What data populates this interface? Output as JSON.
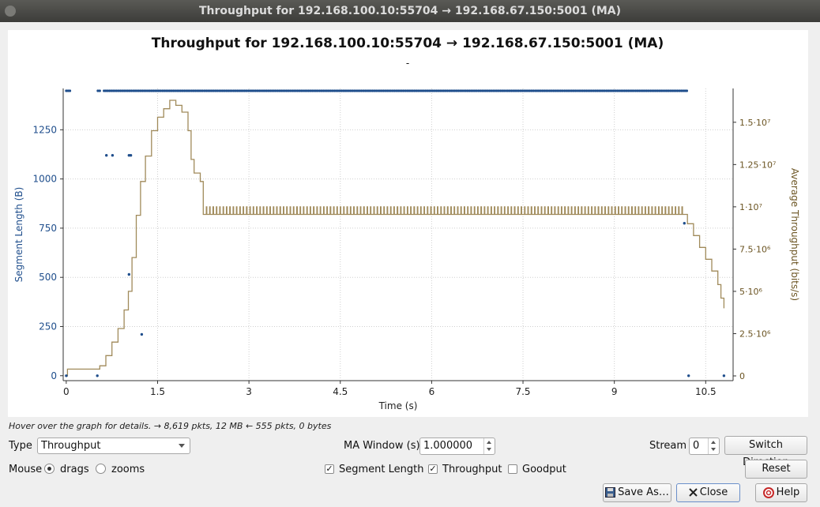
{
  "window": {
    "title": "Throughput for 192.168.100.10:55704 → 192.168.67.150:5001 (MA)"
  },
  "chart_data": {
    "type": "scatter+line",
    "title": "Throughput for 192.168.100.10:55704 → 192.168.67.150:5001 (MA)",
    "subtitle": "-",
    "xlabel": "Time (s)",
    "ylabel_left": "Segment Length (B)",
    "ylabel_right": "Average Throughput (bits/s)",
    "xlim": [
      -0.05,
      10.95
    ],
    "ylim_left": [
      -25,
      1460
    ],
    "ylim_right": [
      0,
      17000000
    ],
    "x_ticks": [
      "0",
      "1.5",
      "3",
      "4.5",
      "6",
      "7.5",
      "9",
      "10.5"
    ],
    "x_tick_values": [
      0,
      1.5,
      3,
      4.5,
      6,
      7.5,
      9,
      10.5
    ],
    "y_left_ticks": [
      "0",
      "250",
      "500",
      "750",
      "1000",
      "1250"
    ],
    "y_left_tick_values": [
      0,
      250,
      500,
      750,
      1000,
      1250
    ],
    "y_right_ticks": [
      "0",
      "2.5·10⁶",
      "5·10⁶",
      "7.5·10⁶",
      "1·10⁷",
      "1.25·10⁷",
      "1.5·10⁷"
    ],
    "y_right_tick_values": [
      0,
      2500000,
      5000000,
      7500000,
      10000000,
      12500000,
      15000000
    ],
    "grid": true,
    "series": [
      {
        "name": "Segment Length",
        "kind": "scatter",
        "color": "#1f4e8c",
        "dense_band": {
          "y": 1448,
          "ranges": [
            [
              0.0,
              0.08
            ],
            [
              0.52,
              0.57
            ],
            [
              0.62,
              10.2
            ]
          ]
        },
        "points": [
          [
            0.0,
            0
          ],
          [
            0.51,
            0
          ],
          [
            0.66,
            1120
          ],
          [
            0.76,
            1120
          ],
          [
            1.03,
            1120
          ],
          [
            1.06,
            1120
          ],
          [
            1.03,
            515
          ],
          [
            1.24,
            210
          ],
          [
            10.15,
            775
          ],
          [
            10.22,
            0
          ],
          [
            10.8,
            0
          ]
        ]
      },
      {
        "name": "Throughput",
        "kind": "line",
        "color": "#a08a5a",
        "points": [
          [
            0.0,
            0
          ],
          [
            0.02,
            400000
          ],
          [
            0.5,
            400000
          ],
          [
            0.55,
            600000
          ],
          [
            0.65,
            1200000
          ],
          [
            0.75,
            2000000
          ],
          [
            0.85,
            2800000
          ],
          [
            0.95,
            3900000
          ],
          [
            1.02,
            5000000
          ],
          [
            1.08,
            7000000
          ],
          [
            1.15,
            9500000
          ],
          [
            1.22,
            11500000
          ],
          [
            1.3,
            13000000
          ],
          [
            1.4,
            14500000
          ],
          [
            1.5,
            15300000
          ],
          [
            1.6,
            15800000
          ],
          [
            1.7,
            16300000
          ],
          [
            1.8,
            16000000
          ],
          [
            1.9,
            15600000
          ],
          [
            2.0,
            14500000
          ],
          [
            2.05,
            12800000
          ],
          [
            2.1,
            12000000
          ],
          [
            2.2,
            11500000
          ],
          [
            2.25,
            9550000
          ],
          [
            2.3,
            9550000
          ]
        ],
        "plateau": {
          "x_start": 2.3,
          "x_end": 10.12,
          "low": 9550000,
          "high": 10000000
        },
        "tail": [
          [
            10.12,
            9550000
          ],
          [
            10.2,
            9000000
          ],
          [
            10.3,
            8300000
          ],
          [
            10.4,
            7600000
          ],
          [
            10.5,
            6900000
          ],
          [
            10.6,
            6200000
          ],
          [
            10.7,
            5400000
          ],
          [
            10.75,
            4600000
          ],
          [
            10.8,
            4000000
          ]
        ]
      }
    ]
  },
  "status_text": "Hover over the graph for details. → 8,619 pkts, 12 MB ← 555 pkts, 0 bytes",
  "controls": {
    "type_label": "Type",
    "type_value": "Throughput",
    "ma_window_label": "MA Window (s)",
    "ma_window_value": "1.000000",
    "stream_label": "Stream",
    "stream_value": "0",
    "switch_direction": "Switch Direction",
    "mouse_label": "Mouse",
    "drags_label": "drags",
    "zooms_label": "zooms",
    "mouse_mode": "drags",
    "segment_length_label": "Segment Length",
    "segment_length_checked": true,
    "throughput_label": "Throughput",
    "throughput_checked": true,
    "goodput_label": "Goodput",
    "goodput_checked": false,
    "reset": "Reset",
    "save_as": "Save As…",
    "close": "Close",
    "help": "Help",
    "check_mark": "✓"
  }
}
